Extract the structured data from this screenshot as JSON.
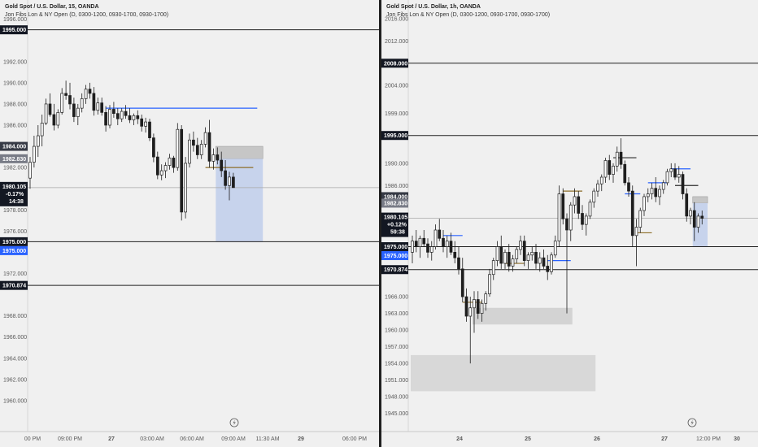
{
  "chart_data": [
    {
      "type": "candlestick",
      "title": "Gold Spot / U.S. Dollar, 15, OANDA",
      "subtitle": "Jon Fibs Lon & NY Open (D, 0300-1200, 0930-1700, 0930-1700)",
      "y_ticks": [
        1960,
        1962,
        1964,
        1966,
        1968,
        1972,
        1976,
        1978,
        1982,
        1986,
        1988,
        1990,
        1992,
        1996
      ],
      "ylim": [
        1958.0,
        1997.2
      ],
      "x_ticks": [
        "00 PM",
        "09:00 PM",
        "27",
        "03:00 AM",
        "06:00 AM",
        "09:00 AM",
        "11:30 AM",
        "29",
        "06:00 PM"
      ],
      "price_labels": [
        {
          "value": 1995.0,
          "text": "1995.000",
          "bg": "#131722",
          "fg": "#ffffff",
          "line": true
        },
        {
          "value": 1984.0,
          "text": "1984.000",
          "bg": "#363a45",
          "fg": "#ffffff",
          "line": false
        },
        {
          "value": 1982.83,
          "text": "1982.830",
          "bg": "#787b86",
          "fg": "#ffffff",
          "line": false
        },
        {
          "value": 1975.0,
          "text": "1975.000",
          "bg": "#131722",
          "fg": "#ffffff",
          "line": true
        },
        {
          "value": 1975.0,
          "text": "1975.000",
          "bg": "#2962ff",
          "fg": "#ffffff",
          "line": false
        },
        {
          "value": 1970.874,
          "text": "1970.874",
          "bg": "#131722",
          "fg": "#ffffff",
          "line": true
        }
      ],
      "last_price": {
        "value": 1980.105,
        "text": "1980.105",
        "change": "-0.17%",
        "countdown": "14:38",
        "bg": "#131722"
      },
      "candles": [
        [
          1981,
          1983,
          1980,
          1982.5
        ],
        [
          1982.5,
          1985,
          1982,
          1984
        ],
        [
          1984,
          1986,
          1983,
          1985
        ],
        [
          1985,
          1987,
          1984,
          1986.2
        ],
        [
          1986.2,
          1988.5,
          1986,
          1988
        ],
        [
          1988,
          1989,
          1986.8,
          1987
        ],
        [
          1987,
          1988,
          1985.5,
          1986
        ],
        [
          1986,
          1987.5,
          1985.7,
          1987.2
        ],
        [
          1987.2,
          1989.5,
          1987,
          1989
        ],
        [
          1989,
          1990.2,
          1988.4,
          1988.8
        ],
        [
          1988.8,
          1990,
          1987.5,
          1988
        ],
        [
          1988,
          1988.6,
          1986.3,
          1986.8
        ],
        [
          1986.8,
          1988,
          1986,
          1987.6
        ],
        [
          1987.6,
          1989,
          1987.2,
          1988.5
        ],
        [
          1988.5,
          1989.8,
          1988,
          1989.4
        ],
        [
          1989.4,
          1990,
          1988.5,
          1989.0
        ],
        [
          1989,
          1989.6,
          1986.9,
          1987.4
        ],
        [
          1987.4,
          1988.6,
          1987,
          1988.1
        ],
        [
          1988.1,
          1988.6,
          1986.9,
          1987.2
        ],
        [
          1987.2,
          1987.8,
          1985.4,
          1986
        ],
        [
          1986,
          1987.9,
          1985.7,
          1987.5
        ],
        [
          1987.5,
          1988.2,
          1986.7,
          1987.1
        ],
        [
          1987.1,
          1987.6,
          1986,
          1986.6
        ],
        [
          1986.6,
          1987.6,
          1986.3,
          1987.3
        ],
        [
          1987.3,
          1987.9,
          1986.6,
          1986.9
        ],
        [
          1986.9,
          1987.6,
          1986.2,
          1986.5
        ],
        [
          1986.5,
          1987.1,
          1986,
          1986.9
        ],
        [
          1986.9,
          1987.4,
          1986.1,
          1986.6
        ],
        [
          1986.6,
          1987.0,
          1985.4,
          1985.9
        ],
        [
          1985.9,
          1986.7,
          1985.3,
          1986.3
        ],
        [
          1986.3,
          1986.6,
          1984.5,
          1984.8
        ],
        [
          1984.8,
          1985.2,
          1982.5,
          1983.0
        ],
        [
          1983,
          1983.5,
          1980.9,
          1981.3
        ],
        [
          1981.3,
          1982.3,
          1980.8,
          1981.7
        ],
        [
          1981.7,
          1982.5,
          1981.0,
          1982.2
        ],
        [
          1982.2,
          1983.3,
          1981.8,
          1982.9
        ],
        [
          1982.9,
          1983.1,
          1981.5,
          1982.0
        ],
        [
          1982,
          1986.2,
          1981.7,
          1985.6
        ],
        [
          1985.6,
          1986.0,
          1977.0,
          1977.8
        ],
        [
          1977.8,
          1983.0,
          1977.2,
          1982.4
        ],
        [
          1982.4,
          1985.2,
          1982.0,
          1984.6
        ],
        [
          1984.6,
          1985.4,
          1983.5,
          1984.1
        ],
        [
          1984.1,
          1984.8,
          1982.8,
          1983.2
        ],
        [
          1983.2,
          1984.6,
          1982.8,
          1984.2
        ],
        [
          1984.2,
          1985.8,
          1983.9,
          1985.3
        ],
        [
          1985.3,
          1986.5,
          1982.0,
          1982.6
        ],
        [
          1982.6,
          1983.8,
          1981.8,
          1983.2
        ],
        [
          1983.2,
          1983.9,
          1982.3,
          1982.7
        ],
        [
          1982.7,
          1983.5,
          1981.1,
          1981.7
        ],
        [
          1981.7,
          1982.7,
          1979.9,
          1980.3
        ],
        [
          1980.3,
          1981.6,
          1978.9,
          1981.1
        ],
        [
          1981.1,
          1981.5,
          1980.1,
          1980.105
        ]
      ],
      "hlines": [
        {
          "value": 1987.6,
          "from": 19,
          "to": 57,
          "color": "#2962ff"
        },
        {
          "value": 1982.0,
          "from": 44,
          "to": 56,
          "color": "#8d6e2a"
        }
      ],
      "zones": [
        {
          "top": 1984.0,
          "bottom": 1982.83,
          "from": 47,
          "to": 58,
          "color": "#c6c6c6"
        },
        {
          "top": 1982.83,
          "bottom": 1975.0,
          "from": 47,
          "to": 58,
          "color": "#c7d3ec"
        }
      ]
    },
    {
      "type": "candlestick",
      "title": "Gold Spot / U.S. Dollar, 1h, OANDA",
      "subtitle": "Jon Fibs Lon & NY Open (D, 0300-1200, 0930-1700, 0930-1700)",
      "y_ticks": [
        1945,
        1948,
        1951,
        1954,
        1957,
        1960,
        1963,
        1966,
        1986,
        1990,
        1999,
        2004,
        2012,
        2016
      ],
      "ylim": [
        1943.5,
        2018.2
      ],
      "x_ticks": [
        "24",
        "25",
        "26",
        "27",
        "12:00 PM",
        "30"
      ],
      "price_labels": [
        {
          "value": 2008.0,
          "text": "2008.000",
          "bg": "#131722",
          "fg": "#ffffff",
          "line": true
        },
        {
          "value": 1995.0,
          "text": "1995.000",
          "bg": "#131722",
          "fg": "#ffffff",
          "line": true
        },
        {
          "value": 1984.0,
          "text": "1984.000",
          "bg": "#363a45",
          "fg": "#ffffff",
          "line": false
        },
        {
          "value": 1982.83,
          "text": "1982.830",
          "bg": "#787b86",
          "fg": "#ffffff",
          "line": false
        },
        {
          "value": 1975.0,
          "text": "1975.000",
          "bg": "#131722",
          "fg": "#ffffff",
          "line": true
        },
        {
          "value": 1975.0,
          "text": "1975.000",
          "bg": "#2962ff",
          "fg": "#ffffff",
          "line": false
        },
        {
          "value": 1970.874,
          "text": "1970.874",
          "bg": "#131722",
          "fg": "#ffffff",
          "line": true
        }
      ],
      "last_price": {
        "value": 1980.105,
        "text": "1980.105",
        "change": "+0.12%",
        "countdown": "59:38",
        "bg": "#131722"
      },
      "candles": [
        [
          1974,
          1977,
          1972,
          1976
        ],
        [
          1976,
          1978,
          1974,
          1975
        ],
        [
          1975,
          1977,
          1973,
          1976.5
        ],
        [
          1976.5,
          1978,
          1975,
          1975.5
        ],
        [
          1975.5,
          1976.5,
          1973,
          1974
        ],
        [
          1974,
          1976,
          1972.5,
          1975
        ],
        [
          1975,
          1979,
          1974.5,
          1978
        ],
        [
          1978,
          1980,
          1976,
          1976.5
        ],
        [
          1976.5,
          1978,
          1974,
          1975
        ],
        [
          1975,
          1977,
          1973,
          1976
        ],
        [
          1976,
          1977.5,
          1973.5,
          1974
        ],
        [
          1974,
          1976,
          1972,
          1973
        ],
        [
          1973,
          1975,
          1970,
          1971
        ],
        [
          1971,
          1973,
          1965,
          1966
        ],
        [
          1966,
          1967.5,
          1961.5,
          1962.5
        ],
        [
          1962.5,
          1966,
          1954,
          1964
        ],
        [
          1964,
          1967,
          1959.5,
          1965.5
        ],
        [
          1965.5,
          1967,
          1962,
          1963
        ],
        [
          1963,
          1965.5,
          1961.5,
          1964.8
        ],
        [
          1964.8,
          1967,
          1963.5,
          1966.5
        ],
        [
          1966.5,
          1971,
          1966,
          1970
        ],
        [
          1970,
          1973,
          1969,
          1972.5
        ],
        [
          1972.5,
          1976,
          1971.5,
          1975
        ],
        [
          1975,
          1977,
          1971,
          1972
        ],
        [
          1972,
          1974.5,
          1971,
          1974
        ],
        [
          1974,
          1975.5,
          1970.5,
          1971.5
        ],
        [
          1971.5,
          1973.5,
          1970.5,
          1972.8
        ],
        [
          1972.8,
          1975,
          1972,
          1974.5
        ],
        [
          1974.5,
          1977,
          1973.5,
          1976
        ],
        [
          1976,
          1977,
          1971.5,
          1972.5
        ],
        [
          1972.5,
          1974,
          1971,
          1973.5
        ],
        [
          1973.5,
          1975,
          1972.5,
          1974
        ],
        [
          1974,
          1975.5,
          1971,
          1972
        ],
        [
          1972,
          1974,
          1970.5,
          1973
        ],
        [
          1973,
          1974.5,
          1971,
          1971.5
        ],
        [
          1971.5,
          1973.5,
          1969,
          1970.5
        ],
        [
          1970.5,
          1974,
          1970,
          1973.5
        ],
        [
          1973.5,
          1977,
          1973,
          1976
        ],
        [
          1976,
          1986,
          1975,
          1984.5
        ],
        [
          1984.5,
          1985.5,
          1979,
          1980
        ],
        [
          1980,
          1981,
          1963,
          1978
        ],
        [
          1978,
          1983,
          1976,
          1982.5
        ],
        [
          1982.5,
          1985.5,
          1981,
          1984
        ],
        [
          1984,
          1985,
          1980,
          1981
        ],
        [
          1981,
          1982.5,
          1978,
          1979
        ],
        [
          1979,
          1981,
          1977,
          1980.5
        ],
        [
          1980.5,
          1983.5,
          1980,
          1983
        ],
        [
          1983,
          1985.5,
          1982,
          1985
        ],
        [
          1985,
          1987,
          1984,
          1986.3
        ],
        [
          1986.3,
          1988,
          1985,
          1987.5
        ],
        [
          1987.5,
          1991,
          1986.5,
          1990.5
        ],
        [
          1990.5,
          1991.5,
          1987,
          1988
        ],
        [
          1988,
          1990,
          1986.5,
          1989.5
        ],
        [
          1989.5,
          1993,
          1988.5,
          1992
        ],
        [
          1992,
          1994.5,
          1989,
          1989.8
        ],
        [
          1989.8,
          1990.5,
          1986,
          1986.5
        ],
        [
          1986.5,
          1987.5,
          1984,
          1985
        ],
        [
          1985,
          1986,
          1975,
          1977
        ],
        [
          1977,
          1980,
          1971.5,
          1978.5
        ],
        [
          1978.5,
          1982,
          1977.5,
          1981.5
        ],
        [
          1981.5,
          1984.5,
          1980.5,
          1984
        ],
        [
          1984,
          1985.5,
          1983,
          1984.5
        ],
        [
          1984.5,
          1986.5,
          1983.5,
          1985.5
        ],
        [
          1985.5,
          1987.5,
          1983,
          1984
        ],
        [
          1984,
          1986,
          1982.5,
          1985.3
        ],
        [
          1985.3,
          1987,
          1984.5,
          1986.5
        ],
        [
          1986.5,
          1989,
          1986,
          1988.5
        ],
        [
          1988.5,
          1990,
          1987.5,
          1989
        ],
        [
          1989,
          1990,
          1987,
          1987.5
        ],
        [
          1987.5,
          1989.5,
          1986.5,
          1988
        ],
        [
          1988,
          1988.5,
          1983.5,
          1984.5
        ],
        [
          1984.5,
          1985.5,
          1979.5,
          1980.5
        ],
        [
          1980.5,
          1982,
          1979,
          1981.5
        ],
        [
          1981.5,
          1983,
          1976,
          1978.5
        ],
        [
          1978.5,
          1981,
          1977.5,
          1980.5
        ],
        [
          1980.5,
          1981.5,
          1979,
          1980.105
        ]
      ],
      "hlines": [
        {
          "value": 1977.0,
          "from": 8,
          "to": 13,
          "color": "#2962ff"
        },
        {
          "value": 1965.0,
          "from": 13,
          "to": 18,
          "color": "#8d6e2a"
        },
        {
          "value": 1972.0,
          "from": 24,
          "to": 29,
          "color": "#8d6e2a"
        },
        {
          "value": 1985.0,
          "from": 39,
          "to": 44,
          "color": "#8d6e2a"
        },
        {
          "value": 1972.5,
          "from": 35,
          "to": 41,
          "color": "#2962ff"
        },
        {
          "value": 1991.0,
          "from": 52,
          "to": 58,
          "color": "#2b2b2b"
        },
        {
          "value": 1984.5,
          "from": 55,
          "to": 59,
          "color": "#2962ff"
        },
        {
          "value": 1986.5,
          "from": 61,
          "to": 66,
          "color": "#2962ff"
        },
        {
          "value": 1977.5,
          "from": 58,
          "to": 62,
          "color": "#8d6e2a"
        },
        {
          "value": 1989.0,
          "from": 67,
          "to": 72,
          "color": "#2962ff"
        },
        {
          "value": 1986.0,
          "from": 68,
          "to": 74,
          "color": "#2b2b2b"
        }
      ],
      "zones": [
        {
          "top": 1964.0,
          "bottom": 1961.0,
          "from": 16,
          "to": 41,
          "color": "#d3d3d3"
        },
        {
          "top": 1955.5,
          "bottom": 1949.0,
          "from": 0,
          "to": 47,
          "color": "#d8d8d8"
        },
        {
          "top": 1984.0,
          "bottom": 1982.83,
          "from": 73,
          "to": 76,
          "color": "#c6c6c6"
        },
        {
          "top": 1982.83,
          "bottom": 1975.0,
          "from": 73,
          "to": 76,
          "color": "#c7d3ec"
        }
      ]
    }
  ]
}
